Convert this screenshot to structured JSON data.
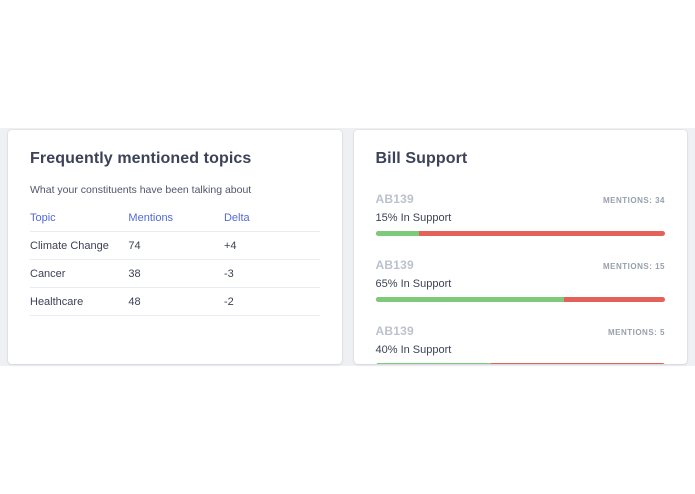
{
  "colors": {
    "accent": "#5469d4",
    "support_green": "#7fc97b",
    "oppose_red": "#e4605a",
    "band_background": "#eef0f3",
    "heading_text": "#3c4257",
    "muted_text": "#bcc2cd"
  },
  "topics_card": {
    "title": "Frequently mentioned topics",
    "subtitle": "What your constituents have been talking about",
    "columns": {
      "topic": "Topic",
      "mentions": "Mentions",
      "delta": "Delta"
    },
    "rows": [
      {
        "topic": "Climate Change",
        "mentions": "74",
        "delta": "+4"
      },
      {
        "topic": "Cancer",
        "mentions": "38",
        "delta": "-3"
      },
      {
        "topic": "Healthcare",
        "mentions": "48",
        "delta": "-2"
      }
    ]
  },
  "bill_card": {
    "title": "Bill Support",
    "bills": [
      {
        "name": "AB139",
        "mentions": "Mentions: 34",
        "support": "15% In Support",
        "pct": 15
      },
      {
        "name": "AB139",
        "mentions": "Mentions: 15",
        "support": "65% In Support",
        "pct": 65
      },
      {
        "name": "AB139",
        "mentions": "Mentions: 5",
        "support": "40% In Support",
        "pct": 40
      }
    ]
  },
  "chart_data": {
    "type": "bar",
    "title": "Bill Support",
    "categories": [
      "AB139 (34 mentions)",
      "AB139 (15 mentions)",
      "AB139 (5 mentions)"
    ],
    "series": [
      {
        "name": "In Support (%)",
        "values": [
          15,
          65,
          40
        ]
      },
      {
        "name": "Not In Support (%)",
        "values": [
          85,
          35,
          60
        ]
      }
    ],
    "xlim": [
      0,
      100
    ]
  }
}
